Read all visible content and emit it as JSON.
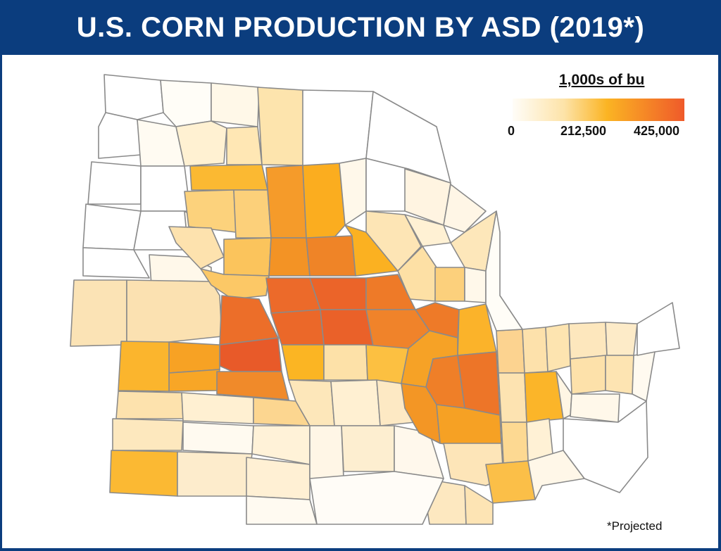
{
  "title": "U.S. CORN PRODUCTION BY ASD (2019*)",
  "legend": {
    "title": "1,000s of bu",
    "ticks": [
      "0",
      "212,500",
      "425,000"
    ],
    "min": 0,
    "mid": 212500,
    "max": 425000,
    "colors": [
      "#fffdf8",
      "#fde3a8",
      "#fbb423",
      "#ef5a2a"
    ]
  },
  "note": "*Projected",
  "colors": {
    "title_bar": "#0b3d7e",
    "border": "#0b3d7e",
    "region_stroke": "#8a8a8a"
  }
}
